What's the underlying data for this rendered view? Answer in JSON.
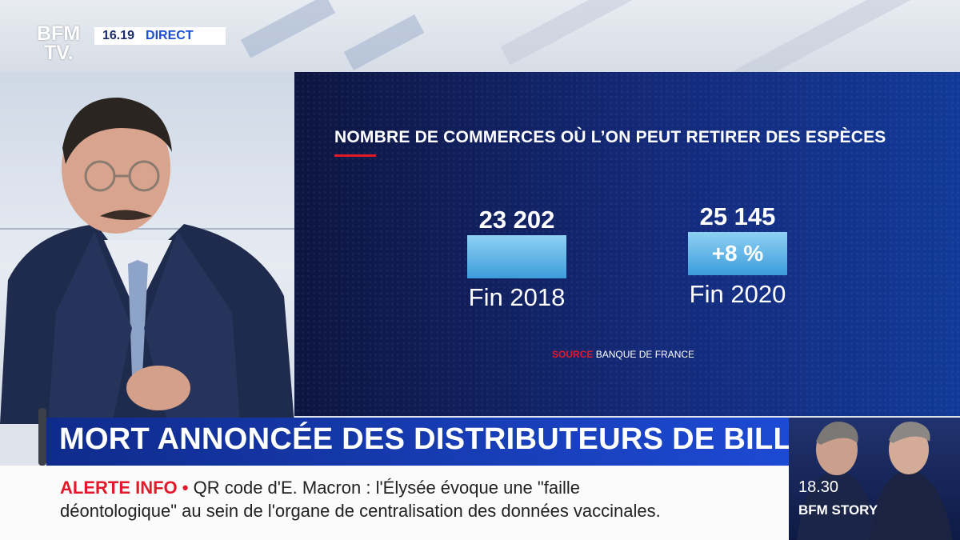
{
  "channel": {
    "logo_line1": "BFM",
    "logo_line2": "TV.",
    "time": "16.19",
    "live_label": "DIRECT"
  },
  "graphic": {
    "title": "NOMBRE DE COMMERCES OÙ L’ON PEUT RETIRER DES ESPÈCES",
    "source_label": "SOURCE",
    "source_value": "BANQUE DE FRANCE",
    "bars": [
      {
        "value": "23 202",
        "label": "Fin 2018",
        "badge": ""
      },
      {
        "value": "25 145",
        "label": "Fin 2020",
        "badge": "+8 %"
      }
    ]
  },
  "chart_data": {
    "type": "bar",
    "title": "NOMBRE DE COMMERCES OÙ L’ON PEUT RETIRER DES ESPÈCES",
    "categories": [
      "Fin 2018",
      "Fin 2020"
    ],
    "values": [
      23202,
      25145
    ],
    "annotations": [
      "+8 %"
    ],
    "source": "BANQUE DE FRANCE"
  },
  "headline": "MORT ANNONCÉE DES DISTRIBUTEURS DE BILLETS ?",
  "ticker": {
    "label": "ALERTE INFO •",
    "line1": "QR code d'E. Macron : l'Élysée évoque une \"faille",
    "line2": "déontologique\" au sein de l'organe de centralisation des données vaccinales."
  },
  "promo": {
    "time": "18.30",
    "show": "BFM STORY"
  },
  "colors": {
    "accent_red": "#e1192b",
    "brand_blue": "#1d4ad3",
    "bar_blue": "#5fb4ea"
  }
}
